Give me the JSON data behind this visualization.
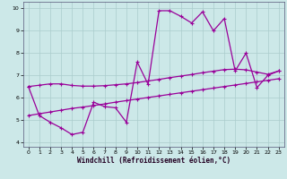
{
  "title": "",
  "xlabel": "Windchill (Refroidissement éolien,°C)",
  "bg_color": "#cce8e8",
  "line_color": "#990099",
  "grid_color": "#aacccc",
  "xlim": [
    -0.5,
    23.5
  ],
  "ylim": [
    3.8,
    10.3
  ],
  "xticks": [
    0,
    1,
    2,
    3,
    4,
    5,
    6,
    7,
    8,
    9,
    10,
    11,
    12,
    13,
    14,
    15,
    16,
    17,
    18,
    19,
    20,
    21,
    22,
    23
  ],
  "yticks": [
    4,
    5,
    6,
    7,
    8,
    9,
    10
  ],
  "x_data": [
    0,
    1,
    2,
    3,
    4,
    5,
    6,
    7,
    8,
    9,
    10,
    11,
    12,
    13,
    14,
    15,
    16,
    17,
    18,
    19,
    20,
    21,
    22,
    23
  ],
  "y_zigzag": [
    6.5,
    5.2,
    4.9,
    4.65,
    4.35,
    4.45,
    5.8,
    5.6,
    5.55,
    4.9,
    7.6,
    6.6,
    9.9,
    9.9,
    9.65,
    9.35,
    9.85,
    9.0,
    9.55,
    7.2,
    8.0,
    6.45,
    7.0,
    7.2
  ],
  "y_lower": [
    5.2,
    5.28,
    5.36,
    5.44,
    5.52,
    5.58,
    5.65,
    5.72,
    5.8,
    5.87,
    5.94,
    6.01,
    6.08,
    6.15,
    6.22,
    6.29,
    6.36,
    6.43,
    6.5,
    6.57,
    6.64,
    6.71,
    6.78,
    6.85
  ],
  "y_upper": [
    6.5,
    6.56,
    6.62,
    6.62,
    6.55,
    6.52,
    6.52,
    6.54,
    6.58,
    6.62,
    6.68,
    6.75,
    6.82,
    6.9,
    6.97,
    7.04,
    7.12,
    7.19,
    7.26,
    7.28,
    7.25,
    7.15,
    7.05,
    7.2
  ],
  "marker": "+"
}
